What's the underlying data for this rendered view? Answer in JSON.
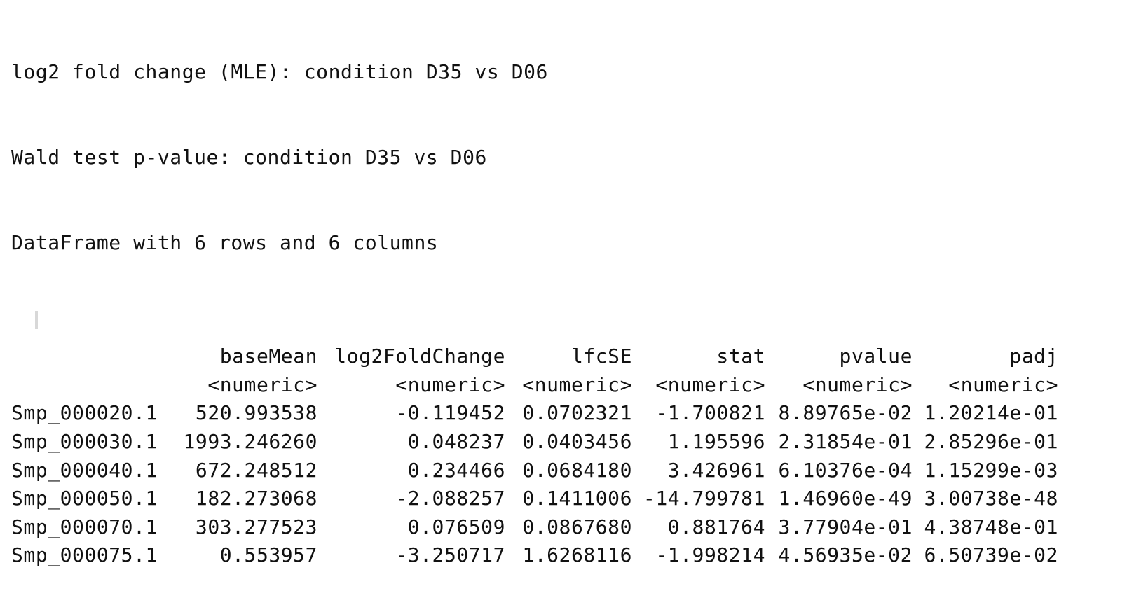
{
  "console": {
    "header_lines": [
      "log2 fold change (MLE): condition D35 vs D06",
      "Wald test p-value: condition D35 vs D06",
      "DataFrame with 6 rows and 6 columns"
    ],
    "columns": [
      "baseMean",
      "log2FoldChange",
      "lfcSE",
      "stat",
      "pvalue",
      "padj"
    ],
    "types": [
      "<numeric>",
      "<numeric>",
      "<numeric>",
      "<numeric>",
      "<numeric>",
      "<numeric>"
    ],
    "rows": [
      {
        "name": "Smp_000020.1",
        "cells": [
          "520.993538",
          "-0.119452",
          "0.0702321",
          "-1.700821",
          "8.89765e-02",
          "1.20214e-01"
        ]
      },
      {
        "name": "Smp_000030.1",
        "cells": [
          "1993.246260",
          "0.048237",
          "0.0403456",
          "1.195596",
          "2.31854e-01",
          "2.85296e-01"
        ]
      },
      {
        "name": "Smp_000040.1",
        "cells": [
          "672.248512",
          "0.234466",
          "0.0684180",
          "3.426961",
          "6.10376e-04",
          "1.15299e-03"
        ]
      },
      {
        "name": "Smp_000050.1",
        "cells": [
          "182.273068",
          "-2.088257",
          "0.1411006",
          "-14.799781",
          "1.46960e-49",
          "3.00738e-48"
        ]
      },
      {
        "name": "Smp_000070.1",
        "cells": [
          "303.277523",
          "0.076509",
          "0.0867680",
          "0.881764",
          "3.77904e-01",
          "4.38748e-01"
        ]
      },
      {
        "name": "Smp_000075.1",
        "cells": [
          "0.553957",
          "-3.250717",
          "1.6268116",
          "-1.998214",
          "4.56935e-02",
          "6.50739e-02"
        ]
      }
    ]
  }
}
